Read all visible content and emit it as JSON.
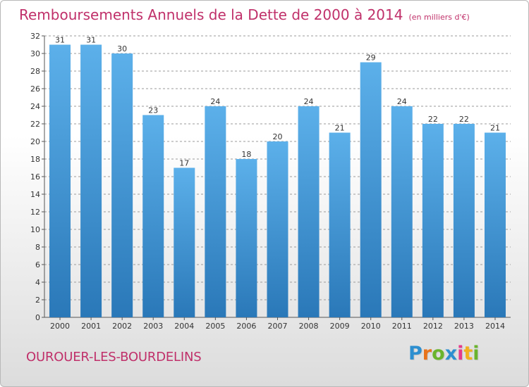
{
  "title": "Remboursements Annuels de la Dette de 2000 à 2014",
  "title_unit": "(en milliers d'€)",
  "commune": "OUROUER-LES-BOURDELINS",
  "logo": {
    "letters": [
      "P",
      "r",
      "o",
      "x",
      "i",
      "t",
      "i"
    ],
    "colors": [
      "#2d8fd0",
      "#e8731a",
      "#6ab42d",
      "#2d8fd0",
      "#e63a8c",
      "#f2b01e",
      "#6ab42d"
    ]
  },
  "colors": {
    "accent": "#c0306a",
    "bar_top": "#5cb0ea",
    "bar_bottom": "#2a78b8",
    "grid": "#9a9a9a",
    "label": "#333333"
  },
  "chart_data": {
    "type": "bar",
    "categories": [
      "2000",
      "2001",
      "2002",
      "2003",
      "2004",
      "2005",
      "2006",
      "2007",
      "2008",
      "2009",
      "2010",
      "2011",
      "2012",
      "2013",
      "2014"
    ],
    "values": [
      31,
      31,
      30,
      23,
      17,
      24,
      18,
      20,
      24,
      21,
      29,
      24,
      22,
      22,
      21
    ],
    "ylim": [
      0,
      32
    ],
    "yticks": [
      0,
      2,
      4,
      6,
      8,
      10,
      12,
      14,
      16,
      18,
      20,
      22,
      24,
      26,
      28,
      30,
      32
    ],
    "grid": "horizontal dashed",
    "legend": "none"
  }
}
